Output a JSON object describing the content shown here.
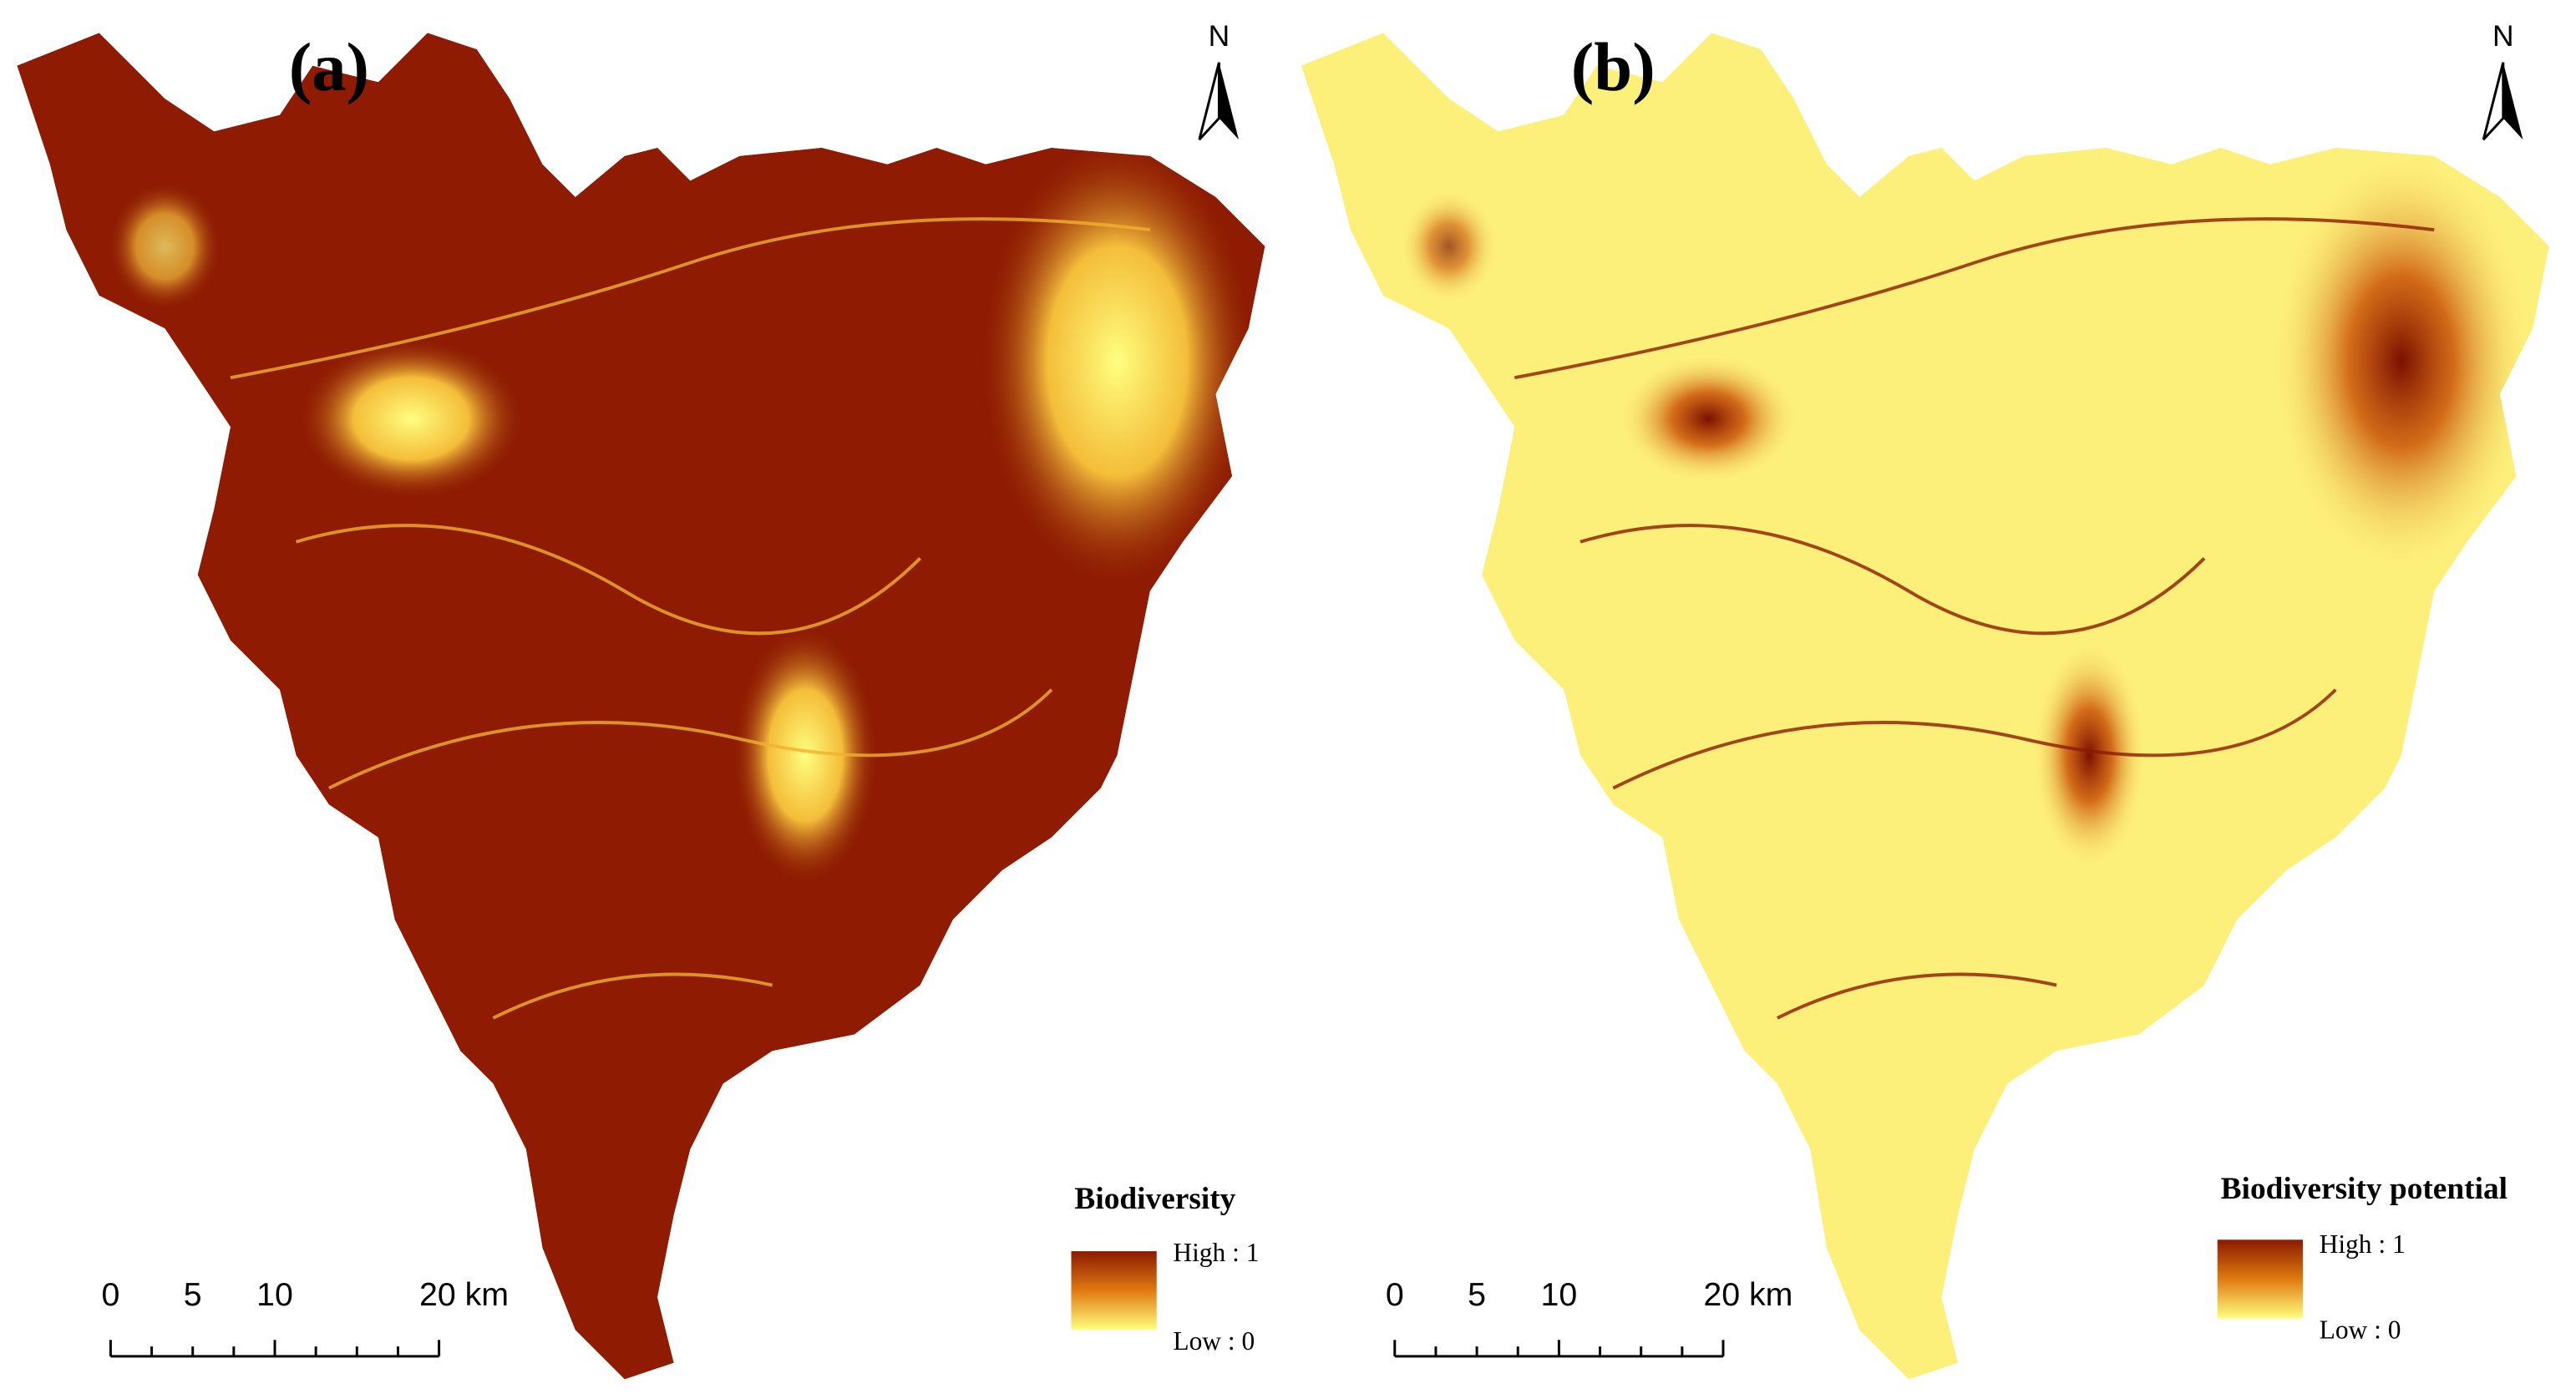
{
  "panels": [
    {
      "label": "(a)",
      "north": "N",
      "legend": {
        "title": "Biodiversity",
        "high": "High : 1",
        "low": "Low : 0"
      },
      "scale": [
        "0",
        "5",
        "10",
        "20 km"
      ]
    },
    {
      "label": "(b)",
      "north": "N",
      "legend": {
        "title": "Biodiversity potential",
        "high": "High : 1",
        "low": "Low : 0"
      },
      "scale": [
        "0",
        "5",
        "10",
        "20 km"
      ]
    }
  ]
}
